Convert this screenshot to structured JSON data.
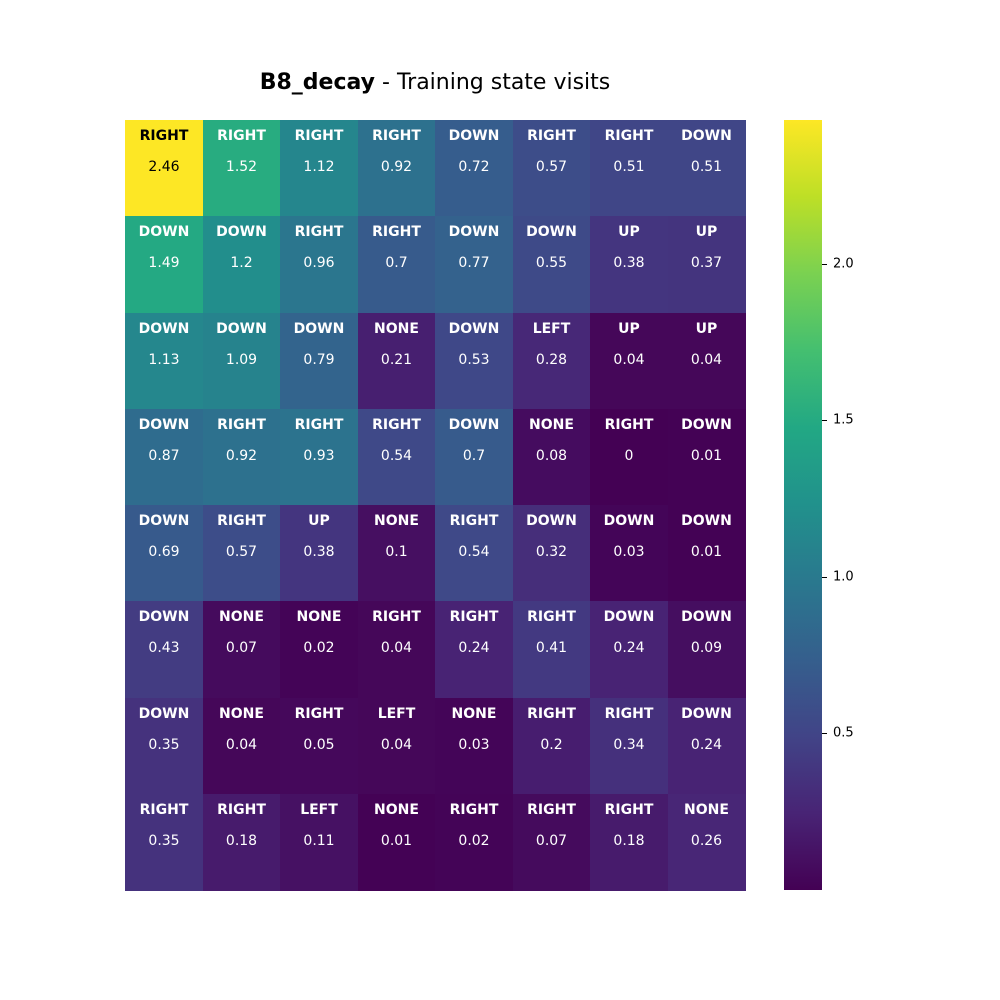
{
  "chart_data": {
    "type": "heatmap",
    "title_bold": "B8_decay",
    "title_rest": " - Training state visits",
    "rows": 8,
    "cols": 8,
    "values": [
      [
        2.46,
        1.52,
        1.12,
        0.92,
        0.72,
        0.57,
        0.51,
        0.51
      ],
      [
        1.49,
        1.2,
        0.96,
        0.7,
        0.77,
        0.55,
        0.38,
        0.37
      ],
      [
        1.13,
        1.09,
        0.79,
        0.21,
        0.53,
        0.28,
        0.04,
        0.04
      ],
      [
        0.87,
        0.92,
        0.93,
        0.54,
        0.7,
        0.08,
        0,
        0.01
      ],
      [
        0.69,
        0.57,
        0.38,
        0.1,
        0.54,
        0.32,
        0.03,
        0.01
      ],
      [
        0.43,
        0.07,
        0.02,
        0.04,
        0.24,
        0.41,
        0.24,
        0.09
      ],
      [
        0.35,
        0.04,
        0.05,
        0.04,
        0.03,
        0.2,
        0.34,
        0.24
      ],
      [
        0.35,
        0.18,
        0.11,
        0.01,
        0.02,
        0.07,
        0.18,
        0.26
      ]
    ],
    "actions": [
      [
        "RIGHT",
        "RIGHT",
        "RIGHT",
        "RIGHT",
        "DOWN",
        "RIGHT",
        "RIGHT",
        "DOWN"
      ],
      [
        "DOWN",
        "DOWN",
        "RIGHT",
        "RIGHT",
        "DOWN",
        "DOWN",
        "UP",
        "UP"
      ],
      [
        "DOWN",
        "DOWN",
        "DOWN",
        "NONE",
        "DOWN",
        "LEFT",
        "UP",
        "UP"
      ],
      [
        "DOWN",
        "RIGHT",
        "RIGHT",
        "RIGHT",
        "DOWN",
        "NONE",
        "RIGHT",
        "DOWN"
      ],
      [
        "DOWN",
        "RIGHT",
        "UP",
        "NONE",
        "RIGHT",
        "DOWN",
        "DOWN",
        "DOWN"
      ],
      [
        "DOWN",
        "NONE",
        "NONE",
        "RIGHT",
        "RIGHT",
        "RIGHT",
        "DOWN",
        "DOWN"
      ],
      [
        "DOWN",
        "NONE",
        "RIGHT",
        "LEFT",
        "NONE",
        "RIGHT",
        "RIGHT",
        "DOWN"
      ],
      [
        "RIGHT",
        "RIGHT",
        "LEFT",
        "NONE",
        "RIGHT",
        "RIGHT",
        "RIGHT",
        "NONE"
      ]
    ],
    "colormap": "viridis",
    "vmin": 0,
    "vmax": 2.46,
    "colorbar_ticks": [
      0.5,
      1.0,
      1.5,
      2.0
    ],
    "colorbar_tick_labels": [
      "0.5",
      "1.0",
      "1.5",
      "2.0"
    ]
  }
}
